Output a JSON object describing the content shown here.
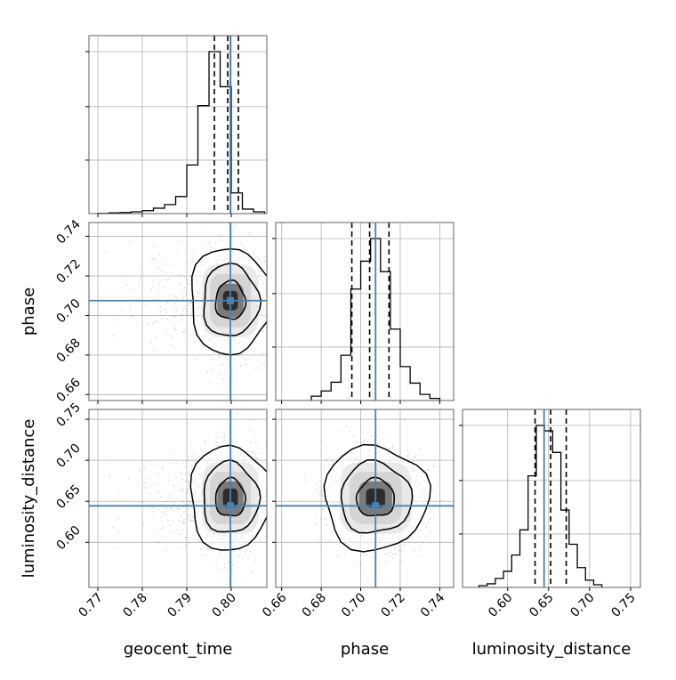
{
  "chart_data": {
    "type": "corner",
    "parameters": [
      {
        "name": "geocent_time",
        "range": [
          0.768,
          0.808
        ],
        "ticks": [
          0.77,
          0.78,
          0.79,
          0.8
        ],
        "tick_labels": [
          "0.77",
          "0.78",
          "0.79",
          "0.80"
        ],
        "truth": 0.7998,
        "quantiles": [
          0.7962,
          0.7992,
          0.8016
        ],
        "hist_edges": [
          0.77,
          0.7725,
          0.775,
          0.7775,
          0.78,
          0.7825,
          0.785,
          0.7875,
          0.79,
          0.7925,
          0.795,
          0.7975,
          0.8,
          0.8025,
          0.805,
          0.8075
        ],
        "hist_counts": [
          0.001,
          0.004,
          0.006,
          0.01,
          0.016,
          0.03,
          0.05,
          0.095,
          0.27,
          0.6,
          0.9,
          0.705,
          0.115,
          0.025,
          0.01
        ]
      },
      {
        "name": "phase",
        "range": [
          0.657,
          0.747
        ],
        "ticks": [
          0.66,
          0.68,
          0.7,
          0.72,
          0.74
        ],
        "tick_labels": [
          "0.66",
          "0.68",
          "0.70",
          "0.72",
          "0.74"
        ],
        "truth": 0.7075,
        "quantiles": [
          0.6955,
          0.7045,
          0.7143
        ],
        "hist_edges": [
          0.675,
          0.68,
          0.685,
          0.69,
          0.695,
          0.7,
          0.705,
          0.71,
          0.715,
          0.72,
          0.725,
          0.73,
          0.735,
          0.74
        ],
        "hist_counts": [
          0.025,
          0.055,
          0.105,
          0.26,
          0.64,
          0.8,
          0.93,
          0.74,
          0.41,
          0.195,
          0.1,
          0.035,
          0.012
        ]
      },
      {
        "name": "luminosity_distance",
        "range": [
          0.545,
          0.762
        ],
        "ticks": [
          0.6,
          0.65,
          0.7,
          0.75
        ],
        "tick_labels": [
          "0.60",
          "0.65",
          "0.70",
          "0.75"
        ],
        "truth": 0.6445,
        "quantiles": [
          0.6335,
          0.6525,
          0.6715
        ],
        "hist_edges": [
          0.565,
          0.575,
          0.585,
          0.595,
          0.605,
          0.615,
          0.625,
          0.635,
          0.645,
          0.655,
          0.665,
          0.675,
          0.685,
          0.695,
          0.705,
          0.715
        ],
        "hist_counts": [
          0.01,
          0.02,
          0.05,
          0.09,
          0.18,
          0.32,
          0.62,
          0.9,
          0.87,
          0.75,
          0.43,
          0.24,
          0.11,
          0.04,
          0.015
        ]
      }
    ],
    "pairs": [
      {
        "x": "geocent_time",
        "y": "phase",
        "center": [
          0.7998,
          0.7075
        ],
        "spread": [
          0.0042,
          0.0122
        ],
        "contour_levels": [
          0.8,
          1.5,
          2.2
        ]
      },
      {
        "x": "geocent_time",
        "y": "luminosity_distance",
        "center": [
          0.7998,
          0.654
        ],
        "spread": [
          0.0042,
          0.029
        ],
        "contour_levels": [
          0.8,
          1.5,
          2.2
        ]
      },
      {
        "x": "phase",
        "y": "luminosity_distance",
        "center": [
          0.7075,
          0.654
        ],
        "spread": [
          0.012,
          0.029
        ],
        "contour_levels": [
          0.8,
          1.5,
          2.2
        ]
      }
    ],
    "truth_color": "#4682b4",
    "line_color": "#000000",
    "grid": true,
    "axis_labels": {
      "x": [
        "geocent_time",
        "phase",
        "luminosity_distance"
      ],
      "y": [
        "phase",
        "luminosity_distance"
      ]
    }
  }
}
